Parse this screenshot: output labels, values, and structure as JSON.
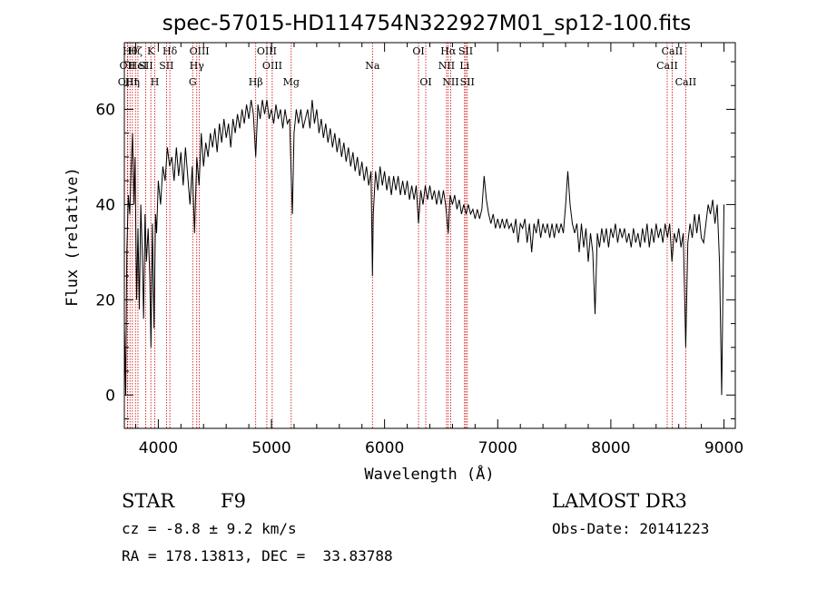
{
  "chart_data": {
    "type": "line",
    "title": "spec-57015-HD114754N322927M01_sp12-100.fits",
    "xlabel": "Wavelength (Å)",
    "ylabel": "Flux (relative)",
    "xlim": [
      3700,
      9100
    ],
    "ylim": [
      -7,
      74
    ],
    "xticks": [
      4000,
      5000,
      6000,
      7000,
      8000,
      9000
    ],
    "xtick_labels": [
      "4000",
      "5000",
      "6000",
      "7000",
      "8000",
      "9000"
    ],
    "yticks": [
      0,
      20,
      40,
      60
    ],
    "ytick_labels": [
      "0",
      "20",
      "40",
      "60"
    ],
    "grid": false,
    "series": [
      {
        "values": [
          [
            3700,
            15
          ],
          [
            3712,
            0
          ],
          [
            3722,
            30
          ],
          [
            3735,
            42
          ],
          [
            3748,
            38
          ],
          [
            3760,
            48
          ],
          [
            3772,
            55
          ],
          [
            3785,
            40
          ],
          [
            3795,
            50
          ],
          [
            3808,
            20
          ],
          [
            3820,
            35
          ],
          [
            3832,
            18
          ],
          [
            3845,
            40
          ],
          [
            3858,
            30
          ],
          [
            3870,
            16
          ],
          [
            3883,
            38
          ],
          [
            3895,
            28
          ],
          [
            3910,
            35
          ],
          [
            3925,
            25
          ],
          [
            3935,
            10
          ],
          [
            3948,
            36
          ],
          [
            3962,
            14
          ],
          [
            3975,
            38
          ],
          [
            3985,
            34
          ],
          [
            4000,
            45
          ],
          [
            4020,
            40
          ],
          [
            4040,
            48
          ],
          [
            4060,
            45
          ],
          [
            4080,
            52
          ],
          [
            4100,
            48
          ],
          [
            4120,
            50
          ],
          [
            4140,
            45
          ],
          [
            4160,
            52
          ],
          [
            4180,
            46
          ],
          [
            4200,
            51
          ],
          [
            4220,
            44
          ],
          [
            4240,
            52
          ],
          [
            4260,
            46
          ],
          [
            4280,
            40
          ],
          [
            4300,
            48
          ],
          [
            4320,
            34
          ],
          [
            4340,
            50
          ],
          [
            4360,
            44
          ],
          [
            4380,
            55
          ],
          [
            4400,
            48
          ],
          [
            4420,
            53
          ],
          [
            4440,
            50
          ],
          [
            4460,
            55
          ],
          [
            4480,
            52
          ],
          [
            4500,
            56
          ],
          [
            4520,
            51
          ],
          [
            4540,
            57
          ],
          [
            4560,
            53
          ],
          [
            4580,
            58
          ],
          [
            4600,
            54
          ],
          [
            4620,
            57
          ],
          [
            4640,
            52
          ],
          [
            4660,
            58
          ],
          [
            4680,
            55
          ],
          [
            4700,
            59
          ],
          [
            4720,
            56
          ],
          [
            4740,
            60
          ],
          [
            4760,
            57
          ],
          [
            4780,
            61
          ],
          [
            4800,
            58
          ],
          [
            4820,
            62
          ],
          [
            4840,
            59
          ],
          [
            4861,
            50
          ],
          [
            4880,
            61
          ],
          [
            4900,
            58
          ],
          [
            4920,
            62
          ],
          [
            4940,
            59
          ],
          [
            4960,
            62
          ],
          [
            4980,
            58
          ],
          [
            5000,
            60
          ],
          [
            5020,
            57
          ],
          [
            5040,
            61
          ],
          [
            5060,
            58
          ],
          [
            5080,
            60
          ],
          [
            5100,
            56
          ],
          [
            5120,
            60
          ],
          [
            5140,
            57
          ],
          [
            5160,
            58
          ],
          [
            5175,
            46
          ],
          [
            5185,
            38
          ],
          [
            5200,
            55
          ],
          [
            5220,
            60
          ],
          [
            5240,
            57
          ],
          [
            5260,
            60
          ],
          [
            5280,
            56
          ],
          [
            5300,
            58
          ],
          [
            5320,
            60
          ],
          [
            5340,
            56
          ],
          [
            5360,
            62
          ],
          [
            5380,
            57
          ],
          [
            5400,
            60
          ],
          [
            5420,
            55
          ],
          [
            5440,
            58
          ],
          [
            5460,
            54
          ],
          [
            5480,
            57
          ],
          [
            5500,
            53
          ],
          [
            5520,
            56
          ],
          [
            5540,
            52
          ],
          [
            5560,
            55
          ],
          [
            5580,
            51
          ],
          [
            5600,
            54
          ],
          [
            5620,
            50
          ],
          [
            5640,
            53
          ],
          [
            5660,
            49
          ],
          [
            5680,
            52
          ],
          [
            5700,
            48
          ],
          [
            5720,
            51
          ],
          [
            5740,
            47
          ],
          [
            5760,
            50
          ],
          [
            5780,
            46
          ],
          [
            5800,
            49
          ],
          [
            5820,
            45
          ],
          [
            5840,
            48
          ],
          [
            5860,
            44
          ],
          [
            5880,
            47
          ],
          [
            5893,
            25
          ],
          [
            5900,
            38
          ],
          [
            5920,
            47
          ],
          [
            5940,
            43
          ],
          [
            5960,
            48
          ],
          [
            5980,
            44
          ],
          [
            6000,
            47
          ],
          [
            6020,
            43
          ],
          [
            6040,
            46
          ],
          [
            6060,
            42
          ],
          [
            6080,
            46
          ],
          [
            6100,
            43
          ],
          [
            6120,
            46
          ],
          [
            6140,
            42
          ],
          [
            6160,
            45
          ],
          [
            6180,
            42
          ],
          [
            6200,
            45
          ],
          [
            6220,
            41
          ],
          [
            6240,
            44
          ],
          [
            6260,
            41
          ],
          [
            6280,
            44
          ],
          [
            6300,
            36
          ],
          [
            6320,
            43
          ],
          [
            6340,
            40
          ],
          [
            6360,
            44
          ],
          [
            6380,
            41
          ],
          [
            6400,
            44
          ],
          [
            6420,
            41
          ],
          [
            6440,
            43
          ],
          [
            6460,
            40
          ],
          [
            6480,
            43
          ],
          [
            6500,
            40
          ],
          [
            6520,
            43
          ],
          [
            6540,
            40
          ],
          [
            6563,
            34
          ],
          [
            6580,
            42
          ],
          [
            6600,
            40
          ],
          [
            6620,
            42
          ],
          [
            6640,
            39
          ],
          [
            6660,
            41
          ],
          [
            6680,
            38
          ],
          [
            6700,
            40
          ],
          [
            6720,
            38
          ],
          [
            6740,
            40
          ],
          [
            6760,
            38
          ],
          [
            6780,
            39
          ],
          [
            6800,
            37
          ],
          [
            6820,
            39
          ],
          [
            6840,
            37
          ],
          [
            6860,
            39
          ],
          [
            6880,
            46
          ],
          [
            6900,
            41
          ],
          [
            6920,
            38
          ],
          [
            6940,
            36
          ],
          [
            6960,
            38
          ],
          [
            6980,
            35
          ],
          [
            7000,
            37
          ],
          [
            7020,
            35
          ],
          [
            7040,
            37
          ],
          [
            7060,
            35
          ],
          [
            7080,
            37
          ],
          [
            7100,
            35
          ],
          [
            7120,
            36
          ],
          [
            7140,
            34
          ],
          [
            7160,
            37
          ],
          [
            7180,
            32
          ],
          [
            7200,
            36
          ],
          [
            7220,
            35
          ],
          [
            7240,
            37
          ],
          [
            7260,
            32
          ],
          [
            7280,
            36
          ],
          [
            7300,
            30
          ],
          [
            7320,
            36
          ],
          [
            7340,
            34
          ],
          [
            7360,
            37
          ],
          [
            7380,
            33
          ],
          [
            7400,
            36
          ],
          [
            7420,
            34
          ],
          [
            7440,
            36
          ],
          [
            7460,
            33
          ],
          [
            7480,
            36
          ],
          [
            7500,
            33
          ],
          [
            7520,
            36
          ],
          [
            7540,
            34
          ],
          [
            7560,
            36
          ],
          [
            7580,
            34
          ],
          [
            7600,
            40
          ],
          [
            7620,
            47
          ],
          [
            7640,
            40
          ],
          [
            7660,
            36
          ],
          [
            7680,
            34
          ],
          [
            7700,
            36
          ],
          [
            7720,
            30
          ],
          [
            7740,
            36
          ],
          [
            7760,
            31
          ],
          [
            7780,
            35
          ],
          [
            7800,
            28
          ],
          [
            7820,
            34
          ],
          [
            7840,
            30
          ],
          [
            7860,
            17
          ],
          [
            7880,
            34
          ],
          [
            7900,
            31
          ],
          [
            7920,
            35
          ],
          [
            7940,
            32
          ],
          [
            7960,
            35
          ],
          [
            7980,
            31
          ],
          [
            8000,
            35
          ],
          [
            8020,
            33
          ],
          [
            8040,
            36
          ],
          [
            8060,
            32
          ],
          [
            8080,
            35
          ],
          [
            8100,
            33
          ],
          [
            8120,
            35
          ],
          [
            8140,
            32
          ],
          [
            8160,
            34
          ],
          [
            8180,
            31
          ],
          [
            8200,
            35
          ],
          [
            8220,
            32
          ],
          [
            8240,
            34
          ],
          [
            8260,
            31
          ],
          [
            8280,
            35
          ],
          [
            8300,
            32
          ],
          [
            8320,
            36
          ],
          [
            8340,
            31
          ],
          [
            8360,
            35
          ],
          [
            8380,
            32
          ],
          [
            8400,
            36
          ],
          [
            8420,
            33
          ],
          [
            8440,
            35
          ],
          [
            8460,
            32
          ],
          [
            8480,
            36
          ],
          [
            8500,
            33
          ],
          [
            8520,
            36
          ],
          [
            8540,
            28
          ],
          [
            8560,
            34
          ],
          [
            8580,
            32
          ],
          [
            8600,
            35
          ],
          [
            8620,
            31
          ],
          [
            8640,
            34
          ],
          [
            8662,
            10
          ],
          [
            8680,
            32
          ],
          [
            8700,
            36
          ],
          [
            8720,
            33
          ],
          [
            8740,
            38
          ],
          [
            8760,
            34
          ],
          [
            8780,
            38
          ],
          [
            8800,
            33
          ],
          [
            8820,
            32
          ],
          [
            8840,
            36
          ],
          [
            8860,
            40
          ],
          [
            8880,
            38
          ],
          [
            8900,
            41
          ],
          [
            8920,
            36
          ],
          [
            8940,
            40
          ],
          [
            8960,
            28
          ],
          [
            8980,
            0
          ],
          [
            9000,
            40
          ]
        ]
      }
    ],
    "annotations": {
      "lines": [
        {
          "wavelength": 3727,
          "label": "OII",
          "row": 1
        },
        {
          "wavelength": 3730,
          "label": "OIII",
          "row": 2
        },
        {
          "wavelength": 3750,
          "label": "Hθ",
          "row": 0
        },
        {
          "wavelength": 3771,
          "label": "Hη",
          "row": 2
        },
        {
          "wavelength": 3798,
          "label": "Hζ",
          "row": 0
        },
        {
          "wavelength": 3820,
          "label": "HeI",
          "row": 1
        },
        {
          "wavelength": 3889,
          "label": "SII",
          "row": 1
        },
        {
          "wavelength": 3934,
          "label": "K",
          "row": 0
        },
        {
          "wavelength": 3969,
          "label": "H",
          "row": 2
        },
        {
          "wavelength": 4102,
          "label": "Hδ",
          "row": 0
        },
        {
          "wavelength": 4072,
          "label": "SII",
          "row": 1
        },
        {
          "wavelength": 4304,
          "label": "G",
          "row": 2
        },
        {
          "wavelength": 4340,
          "label": "Hγ",
          "row": 1
        },
        {
          "wavelength": 4363,
          "label": "OIII",
          "row": 0
        },
        {
          "wavelength": 4861,
          "label": "Hβ",
          "row": 2
        },
        {
          "wavelength": 4959,
          "label": "OIII",
          "row": 0
        },
        {
          "wavelength": 5007,
          "label": "OIII",
          "row": 1
        },
        {
          "wavelength": 5175,
          "label": "Mg",
          "row": 2
        },
        {
          "wavelength": 5893,
          "label": "Na",
          "row": 1
        },
        {
          "wavelength": 6300,
          "label": "OI",
          "row": 0
        },
        {
          "wavelength": 6364,
          "label": "OI",
          "row": 2
        },
        {
          "wavelength": 6548,
          "label": "NII",
          "row": 1
        },
        {
          "wavelength": 6563,
          "label": "Hα",
          "row": 0
        },
        {
          "wavelength": 6584,
          "label": "NII",
          "row": 2
        },
        {
          "wavelength": 6707,
          "label": "Li",
          "row": 1
        },
        {
          "wavelength": 6717,
          "label": "SII",
          "row": 0
        },
        {
          "wavelength": 6731,
          "label": "SII",
          "row": 2
        },
        {
          "wavelength": 8498,
          "label": "CaII",
          "row": 1
        },
        {
          "wavelength": 8542,
          "label": "CaII",
          "row": 0
        },
        {
          "wavelength": 8662,
          "label": "CaII",
          "row": 2
        }
      ]
    },
    "colors": {
      "spectrum": "#000000",
      "line_markers": "#cc0000"
    }
  },
  "info": {
    "object_class": "STAR",
    "subclass": "F9",
    "survey": "LAMOST DR3",
    "redshift": "cz = -8.8 ± 9.2 km/s",
    "obs_date": "Obs-Date: 20141223",
    "coords": "RA = 178.13813, DEC =  33.83788"
  }
}
